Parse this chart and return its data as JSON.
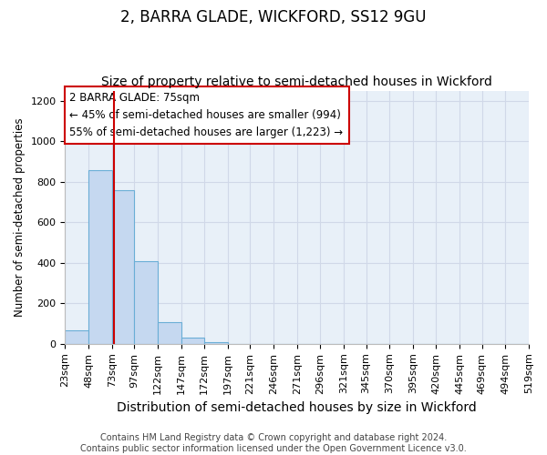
{
  "title": "2, BARRA GLADE, WICKFORD, SS12 9GU",
  "subtitle": "Size of property relative to semi-detached houses in Wickford",
  "xlabel": "Distribution of semi-detached houses by size in Wickford",
  "ylabel": "Number of semi-detached properties",
  "footer_line1": "Contains HM Land Registry data © Crown copyright and database right 2024.",
  "footer_line2": "Contains public sector information licensed under the Open Government Licence v3.0.",
  "annotation_line1": "2 BARRA GLADE: 75sqm",
  "annotation_line2": "← 45% of semi-detached houses are smaller (994)",
  "annotation_line3": "55% of semi-detached houses are larger (1,223) →",
  "property_size": 75,
  "bar_edges": [
    23,
    48,
    73,
    97,
    122,
    147,
    172,
    197,
    221,
    246,
    271,
    296,
    321,
    345,
    370,
    395,
    420,
    445,
    469,
    494,
    519
  ],
  "bar_values": [
    65,
    855,
    760,
    410,
    105,
    30,
    8,
    0,
    0,
    0,
    0,
    0,
    0,
    0,
    0,
    0,
    0,
    0,
    0,
    0
  ],
  "bar_color": "#c5d8f0",
  "bar_edge_color": "#6aaed6",
  "red_line_color": "#cc0000",
  "annotation_box_edge_color": "#cc0000",
  "annotation_box_face_color": "#ffffff",
  "grid_color": "#d0d8e8",
  "background_color": "#ffffff",
  "plot_bg_color": "#e8f0f8",
  "ylim": [
    0,
    1250
  ],
  "yticks": [
    0,
    200,
    400,
    600,
    800,
    1000,
    1200
  ],
  "title_fontsize": 12,
  "subtitle_fontsize": 10,
  "xlabel_fontsize": 10,
  "ylabel_fontsize": 8.5,
  "tick_fontsize": 8,
  "annotation_fontsize": 8.5,
  "footer_fontsize": 7
}
